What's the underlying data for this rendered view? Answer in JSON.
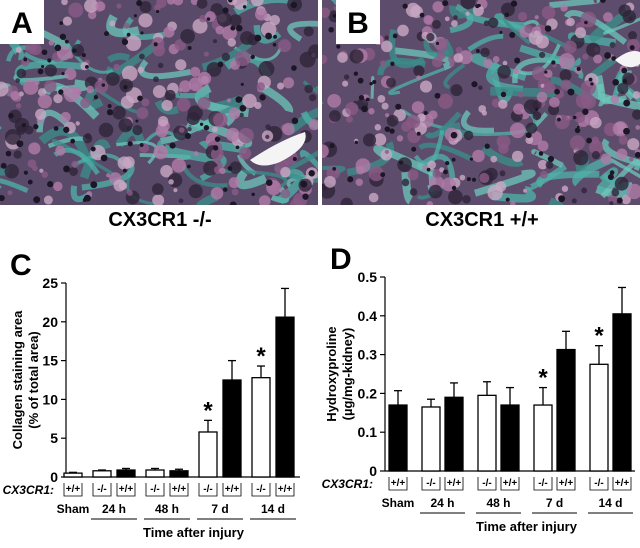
{
  "panels": [
    {
      "label": "A",
      "caption": "CX3CR1 -/-"
    },
    {
      "label": "B",
      "caption": "CX3CR1 +/+"
    }
  ],
  "chart_data": [
    {
      "type": "bar",
      "panel_label": "C",
      "ylabel": [
        "Collagen staining area",
        "(% of total area)"
      ],
      "xlabel": "Time after injury",
      "genotype_label": "CX3CR1:",
      "categories": [
        "Sham",
        "24 h",
        null,
        "48 h",
        null,
        "7 d",
        null,
        "14 d",
        null
      ],
      "genotypes": [
        "+/+",
        "-/-",
        "+/+",
        "-/-",
        "+/+",
        "-/-",
        "+/+",
        "-/-",
        "+/+"
      ],
      "values": [
        0.5,
        0.8,
        0.9,
        0.9,
        0.8,
        5.8,
        12.5,
        12.8,
        20.6
      ],
      "errors": [
        0.1,
        0.1,
        0.2,
        0.2,
        0.2,
        1.5,
        2.5,
        1.5,
        3.7
      ],
      "colors": [
        "#ffffff",
        "#ffffff",
        "#000000",
        "#ffffff",
        "#000000",
        "#ffffff",
        "#000000",
        "#ffffff",
        "#000000"
      ],
      "significance": [
        null,
        null,
        null,
        null,
        null,
        "*",
        null,
        "*",
        null
      ],
      "ylim": [
        0,
        25
      ],
      "yticks": [
        0,
        5,
        10,
        15,
        20,
        25
      ]
    },
    {
      "type": "bar",
      "panel_label": "D",
      "ylabel": [
        "Hydroxyproline",
        "(µg/mg-kidney)"
      ],
      "xlabel": "Time after injury",
      "genotype_label": "CX3CR1:",
      "categories": [
        "Sham",
        "24 h",
        null,
        "48 h",
        null,
        "7 d",
        null,
        "14 d",
        null
      ],
      "genotypes": [
        "+/+",
        "-/-",
        "+/+",
        "-/-",
        "+/+",
        "-/-",
        "+/+",
        "-/-",
        "+/+"
      ],
      "values": [
        0.17,
        0.165,
        0.19,
        0.195,
        0.17,
        0.17,
        0.313,
        0.275,
        0.405
      ],
      "errors": [
        0.037,
        0.02,
        0.037,
        0.035,
        0.045,
        0.045,
        0.047,
        0.048,
        0.068
      ],
      "colors": [
        "#000000",
        "#ffffff",
        "#000000",
        "#ffffff",
        "#000000",
        "#ffffff",
        "#000000",
        "#ffffff",
        "#000000"
      ],
      "significance": [
        null,
        null,
        null,
        null,
        null,
        "*",
        null,
        "*",
        null
      ],
      "ylim": [
        0,
        0.5
      ],
      "yticks": [
        0,
        0.1,
        0.2,
        0.3,
        0.4,
        0.5
      ]
    }
  ]
}
